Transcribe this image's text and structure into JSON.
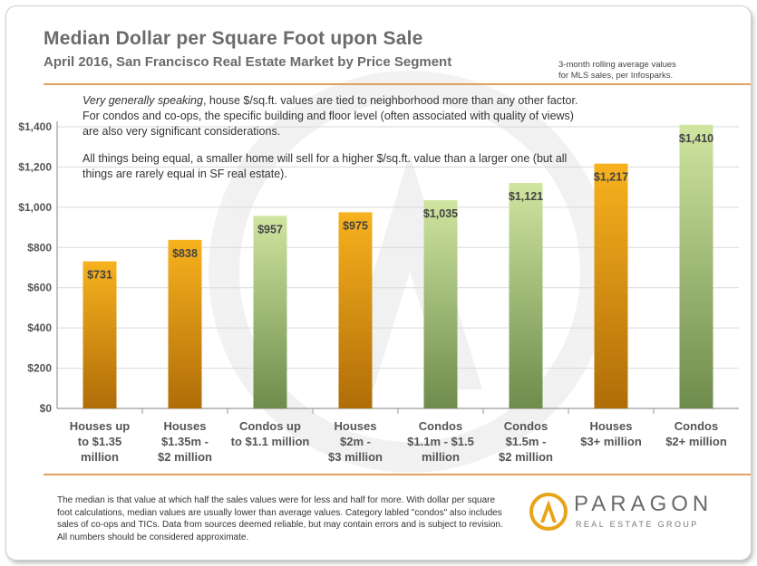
{
  "header": {
    "title": "Median Dollar per Square Foot upon Sale",
    "subtitle": "April 2016, San Francisco Real Estate Market by Price Segment",
    "note_line1": "3-month rolling average values",
    "note_line2": "for MLS sales, per Infosparks."
  },
  "commentary": {
    "p1_emphasis": "Very generally speaking",
    "p1_rest": ", house $/sq.ft. values are tied to neighborhood more than any other factor. For condos and co-ops, the specific building and floor level (often associated with quality of views) are also very significant considerations.",
    "p2": "All things being equal, a smaller home will sell for a higher $/sq.ft. value than a larger one (but all things are rarely equal in SF real estate)."
  },
  "footer": {
    "disclaimer": "The median is that value at which half the sales values were for less and half for more. With dollar per square foot calculations, median values are usually lower than average values. Category labled \"condos\" also includes sales of co-ops and TICs. Data from sources deemed reliable, but may contain errors and is subject to revision. All numbers should be considered approximate."
  },
  "logo": {
    "name": "PARAGON",
    "tagline": "REAL ESTATE GROUP"
  },
  "colors": {
    "house_top": "#f7b21e",
    "house_bottom": "#b06d08",
    "condo_top": "#cfe5a0",
    "condo_bottom": "#6e8c4c"
  },
  "chart_data": {
    "type": "bar",
    "title": "Median Dollar per Square Foot upon Sale",
    "xlabel": "",
    "ylabel": "",
    "ylim": [
      0,
      1400
    ],
    "yticks": [
      0,
      200,
      400,
      600,
      800,
      1000,
      1200,
      1400
    ],
    "ytick_labels": [
      "$0",
      "$200",
      "$400",
      "$600",
      "$800",
      "$1,000",
      "$1,200",
      "$1,400"
    ],
    "categories": [
      [
        "Houses up",
        "to $1.35",
        "million"
      ],
      [
        "Houses",
        "$1.35m -",
        "$2 million"
      ],
      [
        "Condos up",
        "to $1.1 million"
      ],
      [
        "Houses",
        "$2m -",
        "$3 million"
      ],
      [
        "Condos",
        "$1.1m - $1.5",
        "million"
      ],
      [
        "Condos",
        "$1.5m -",
        "$2 million"
      ],
      [
        "Houses",
        "$3+ million"
      ],
      [
        "Condos",
        "$2+ million"
      ]
    ],
    "segment_types": [
      "house",
      "house",
      "condo",
      "house",
      "condo",
      "condo",
      "house",
      "condo"
    ],
    "values": [
      731,
      838,
      957,
      975,
      1035,
      1121,
      1217,
      1410
    ],
    "value_labels": [
      "$731",
      "$838",
      "$957",
      "$975",
      "$1,035",
      "$1,121",
      "$1,217",
      "$1,410"
    ]
  }
}
